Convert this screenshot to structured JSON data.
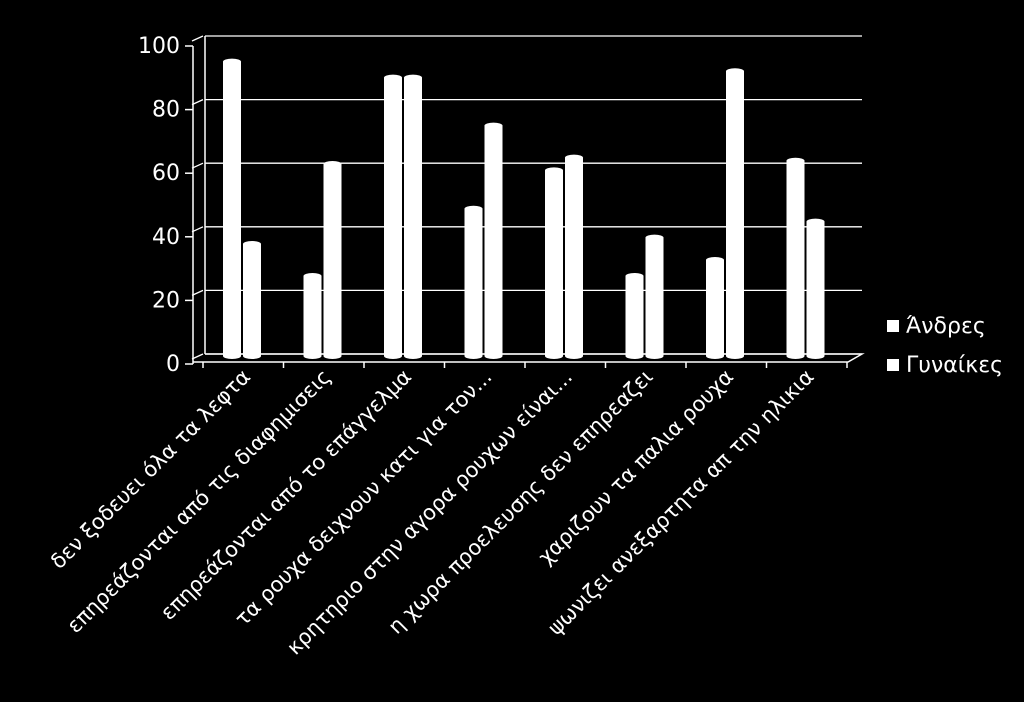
{
  "chart_data": {
    "type": "bar",
    "title": "",
    "xlabel": "",
    "ylabel": "",
    "ylim": [
      0,
      100
    ],
    "yticks": [
      "0",
      "20",
      "40",
      "60",
      "80",
      "100"
    ],
    "grid": true,
    "legend_position": "right",
    "categories": [
      "δεν ξοδευει όλα τα λεφτα",
      "επηρεάζονται από τις διαφημισεις",
      "επηρεάζονται από το επάγγελμα",
      "τα ρουχα δειχνουν κατι για τον...",
      "κρητηριο στην αγορα ρουχων είναι...",
      "η χωρα προελευσης δεν επηρεαζει",
      "χαριζουν  τα παλια ρουχα",
      "ψωνιζει ανεξαρτητα απ την ηλικια"
    ],
    "series": [
      {
        "name": "Άνδρες",
        "color": "#ffffff",
        "values": [
          92,
          25,
          87,
          46,
          58,
          25,
          30,
          61
        ]
      },
      {
        "name": "Γυναίκες",
        "color": "#ffffff",
        "values": [
          35,
          60,
          87,
          72,
          62,
          37,
          89,
          42
        ]
      }
    ]
  }
}
